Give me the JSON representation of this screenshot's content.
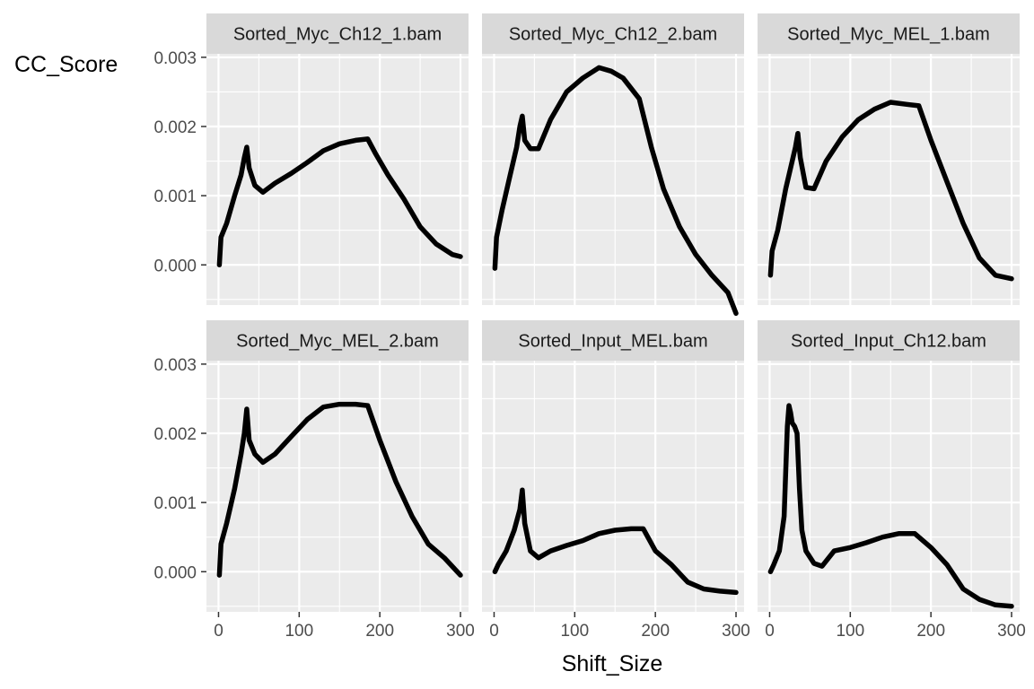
{
  "chart_data": {
    "type": "line",
    "facet_layout": "3 columns x 2 rows",
    "xlabel": "Shift_Size",
    "ylabel": "CC_Score",
    "xlim": [
      -15,
      310
    ],
    "ylim": [
      -0.00058,
      0.00305
    ],
    "x_ticks": [
      0,
      100,
      200,
      300
    ],
    "x_tick_labels": [
      "0",
      "100",
      "200",
      "300"
    ],
    "y_ticks": [
      0.0,
      0.001,
      0.002,
      0.003
    ],
    "y_tick_labels": [
      "0.000",
      "0.001",
      "0.002",
      "0.003"
    ],
    "grid": true,
    "line_color": "#000000",
    "panel_background": "#ebebeb",
    "strip_background": "#d9d9d9",
    "panels": [
      {
        "title": "Sorted_Myc_Ch12_1.bam",
        "points": [
          [
            1,
            0.0
          ],
          [
            3,
            0.0004
          ],
          [
            10,
            0.0006
          ],
          [
            20,
            0.001
          ],
          [
            28,
            0.0013
          ],
          [
            32,
            0.00155
          ],
          [
            35,
            0.0017
          ],
          [
            38,
            0.0014
          ],
          [
            45,
            0.00115
          ],
          [
            55,
            0.00105
          ],
          [
            70,
            0.00118
          ],
          [
            90,
            0.00132
          ],
          [
            110,
            0.00148
          ],
          [
            130,
            0.00165
          ],
          [
            150,
            0.00175
          ],
          [
            170,
            0.0018
          ],
          [
            185,
            0.00182
          ],
          [
            195,
            0.0016
          ],
          [
            210,
            0.0013
          ],
          [
            230,
            0.00095
          ],
          [
            250,
            0.00055
          ],
          [
            270,
            0.0003
          ],
          [
            290,
            0.00015
          ],
          [
            300,
            0.00012
          ]
        ]
      },
      {
        "title": "Sorted_Myc_Ch12_2.bam",
        "points": [
          [
            1,
            -5e-05
          ],
          [
            3,
            0.0004
          ],
          [
            10,
            0.0008
          ],
          [
            20,
            0.0013
          ],
          [
            28,
            0.0017
          ],
          [
            32,
            0.002
          ],
          [
            35,
            0.00215
          ],
          [
            38,
            0.0018
          ],
          [
            45,
            0.00168
          ],
          [
            55,
            0.00168
          ],
          [
            70,
            0.0021
          ],
          [
            90,
            0.0025
          ],
          [
            110,
            0.0027
          ],
          [
            130,
            0.00285
          ],
          [
            145,
            0.0028
          ],
          [
            160,
            0.0027
          ],
          [
            180,
            0.0024
          ],
          [
            195,
            0.0017
          ],
          [
            210,
            0.0011
          ],
          [
            230,
            0.00055
          ],
          [
            250,
            0.00015
          ],
          [
            270,
            -0.00015
          ],
          [
            290,
            -0.0004
          ],
          [
            300,
            -0.0007
          ]
        ]
      },
      {
        "title": "Sorted_Myc_MEL_1.bam",
        "points": [
          [
            1,
            -0.00015
          ],
          [
            3,
            0.0002
          ],
          [
            10,
            0.0005
          ],
          [
            20,
            0.0011
          ],
          [
            28,
            0.0015
          ],
          [
            32,
            0.0017
          ],
          [
            35,
            0.0019
          ],
          [
            38,
            0.00155
          ],
          [
            45,
            0.00112
          ],
          [
            55,
            0.0011
          ],
          [
            70,
            0.0015
          ],
          [
            90,
            0.00185
          ],
          [
            110,
            0.0021
          ],
          [
            130,
            0.00225
          ],
          [
            150,
            0.00235
          ],
          [
            170,
            0.00232
          ],
          [
            185,
            0.0023
          ],
          [
            200,
            0.0018
          ],
          [
            220,
            0.0012
          ],
          [
            240,
            0.0006
          ],
          [
            260,
            0.0001
          ],
          [
            280,
            -0.00015
          ],
          [
            300,
            -0.0002
          ]
        ]
      },
      {
        "title": "Sorted_Myc_MEL_2.bam",
        "points": [
          [
            1,
            -5e-05
          ],
          [
            3,
            0.0004
          ],
          [
            10,
            0.0007
          ],
          [
            20,
            0.0012
          ],
          [
            28,
            0.0017
          ],
          [
            32,
            0.002
          ],
          [
            35,
            0.00235
          ],
          [
            38,
            0.0019
          ],
          [
            45,
            0.0017
          ],
          [
            55,
            0.00158
          ],
          [
            70,
            0.0017
          ],
          [
            90,
            0.00195
          ],
          [
            110,
            0.0022
          ],
          [
            130,
            0.00238
          ],
          [
            150,
            0.00242
          ],
          [
            170,
            0.00242
          ],
          [
            185,
            0.0024
          ],
          [
            200,
            0.0019
          ],
          [
            220,
            0.0013
          ],
          [
            240,
            0.0008
          ],
          [
            260,
            0.0004
          ],
          [
            280,
            0.0002
          ],
          [
            300,
            -5e-05
          ]
        ]
      },
      {
        "title": "Sorted_Input_MEL.bam",
        "points": [
          [
            1,
            0.0
          ],
          [
            5,
            0.0001
          ],
          [
            15,
            0.0003
          ],
          [
            25,
            0.0006
          ],
          [
            32,
            0.0009
          ],
          [
            35,
            0.00118
          ],
          [
            38,
            0.0007
          ],
          [
            45,
            0.0003
          ],
          [
            55,
            0.0002
          ],
          [
            70,
            0.0003
          ],
          [
            90,
            0.00038
          ],
          [
            110,
            0.00045
          ],
          [
            130,
            0.00055
          ],
          [
            150,
            0.0006
          ],
          [
            170,
            0.00062
          ],
          [
            185,
            0.00062
          ],
          [
            200,
            0.0003
          ],
          [
            220,
            0.0001
          ],
          [
            240,
            -0.00015
          ],
          [
            260,
            -0.00025
          ],
          [
            280,
            -0.00028
          ],
          [
            300,
            -0.0003
          ]
        ]
      },
      {
        "title": "Sorted_Input_Ch12.bam",
        "points": [
          [
            1,
            0.0
          ],
          [
            5,
            0.0001
          ],
          [
            12,
            0.0003
          ],
          [
            18,
            0.0008
          ],
          [
            22,
            0.0021
          ],
          [
            24,
            0.0024
          ],
          [
            26,
            0.0023
          ],
          [
            28,
            0.00215
          ],
          [
            31,
            0.0021
          ],
          [
            34,
            0.002
          ],
          [
            37,
            0.0012
          ],
          [
            40,
            0.0006
          ],
          [
            45,
            0.0003
          ],
          [
            55,
            0.00012
          ],
          [
            65,
            8e-05
          ],
          [
            80,
            0.0003
          ],
          [
            100,
            0.00035
          ],
          [
            120,
            0.00042
          ],
          [
            140,
            0.0005
          ],
          [
            160,
            0.00055
          ],
          [
            180,
            0.00055
          ],
          [
            200,
            0.00035
          ],
          [
            220,
            0.0001
          ],
          [
            240,
            -0.00025
          ],
          [
            260,
            -0.0004
          ],
          [
            280,
            -0.00048
          ],
          [
            300,
            -0.0005
          ]
        ]
      }
    ]
  }
}
